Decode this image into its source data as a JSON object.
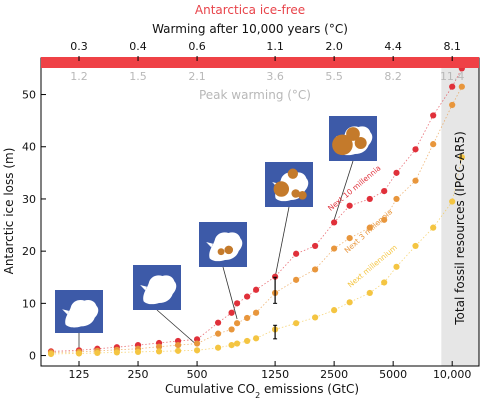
{
  "chart_data": {
    "type": "scatter",
    "title": "Antarctica ice-free",
    "top_axis_label": "Warming after 10,000 years (°C)",
    "top_ticks": [
      "0.3",
      "0.4",
      "0.6",
      "1.1",
      "2.0",
      "4.4",
      "8.1"
    ],
    "peak_ticks": [
      "1.2",
      "1.5",
      "2.1",
      "3.6",
      "5.5",
      "8.2",
      "11.4"
    ],
    "peak_axis_label": "Peak warming (°C)",
    "xlabel_prefix": "Cumulative CO",
    "xlabel_sub": "2",
    "xlabel_suffix": " emissions (GtC)",
    "ylabel": "Antarctic ice loss (m)",
    "x_scale": "log",
    "xlim": [
      80,
      13700
    ],
    "ylim": [
      -2,
      57
    ],
    "x_ticks": [
      125,
      250,
      500,
      1250,
      2500,
      5000,
      10000
    ],
    "x_tick_labels": [
      "125",
      "250",
      "500",
      "1250",
      "2500",
      "5000",
      "10,000"
    ],
    "y_ticks": [
      0,
      10,
      20,
      30,
      40,
      50
    ],
    "ice_free_line": 57,
    "fossil_region": {
      "x_start": 8800,
      "label": "Total fossil resources (IPCC-AR5)"
    },
    "series": [
      {
        "name": "Next 10 millennia",
        "color": "#e0303a",
        "x": [
          90,
          125,
          155,
          195,
          250,
          320,
          400,
          500,
          640,
          750,
          800,
          900,
          1000,
          1250,
          1600,
          2000,
          2500,
          3000,
          3800,
          4500,
          5200,
          6500,
          8000,
          10000,
          11200
        ],
        "y": [
          0.8,
          1.0,
          1.3,
          1.6,
          2.0,
          2.4,
          2.8,
          3.1,
          6.3,
          8.2,
          10.0,
          11.3,
          12.6,
          15.1,
          19.5,
          21.0,
          25.5,
          28.7,
          30.0,
          31.5,
          35.0,
          39.5,
          46.0,
          51.5,
          55.0
        ]
      },
      {
        "name": "Next 3 millennia",
        "color": "#e8963c",
        "x": [
          90,
          125,
          155,
          195,
          250,
          320,
          400,
          500,
          640,
          750,
          800,
          900,
          1000,
          1250,
          1600,
          2000,
          2500,
          3000,
          3800,
          4500,
          5200,
          6500,
          8000,
          10000,
          11200
        ],
        "y": [
          0.6,
          0.7,
          0.9,
          1.1,
          1.3,
          1.7,
          2.0,
          2.3,
          4.2,
          5.0,
          6.2,
          7.2,
          8.2,
          12.0,
          14.5,
          16.5,
          20.5,
          22.5,
          24.5,
          26.0,
          30.0,
          33.5,
          40.5,
          48.0,
          51.5
        ]
      },
      {
        "name": "Next millennium",
        "color": "#f4c542",
        "x": [
          90,
          125,
          155,
          195,
          250,
          320,
          400,
          500,
          640,
          750,
          800,
          900,
          1000,
          1250,
          1600,
          2000,
          2500,
          3000,
          3800,
          4500,
          5200,
          6500,
          8000,
          10000,
          11200
        ],
        "y": [
          0.3,
          0.4,
          0.5,
          0.6,
          0.7,
          0.8,
          0.9,
          1.0,
          1.5,
          2.0,
          2.3,
          2.8,
          3.3,
          5.0,
          6.2,
          7.3,
          8.7,
          10.2,
          12.0,
          14.0,
          17.0,
          21.0,
          24.5,
          29.5,
          38.0
        ]
      }
    ],
    "error_bars": [
      {
        "x": 1250,
        "y": 12.5,
        "low": 10.0,
        "high": 15.0
      },
      {
        "x": 1250,
        "y": 4.5,
        "low": 3.2,
        "high": 5.8
      }
    ]
  },
  "colors": {
    "ice_free_band": "#ef4146",
    "title": "#e8434a",
    "peak": "#b8b8b8",
    "fossil_shade": "#e6e6e6",
    "map_bg": "#3d5aa8",
    "ice": "#ffffff",
    "lost_ice": "#c47a2b"
  },
  "maps": [
    {
      "level": 0,
      "lost": []
    },
    {
      "level": 1,
      "lost": []
    },
    {
      "level": 2,
      "lost": [
        [
          62,
          62,
          5
        ],
        [
          46,
          66,
          4
        ]
      ]
    },
    {
      "level": 3,
      "lost": [
        [
          34,
          60,
          9
        ],
        [
          58,
          26,
          6
        ],
        [
          64,
          70,
          5
        ],
        [
          78,
          74,
          5
        ]
      ]
    },
    {
      "level": 4,
      "lost": [
        [
          28,
          64,
          12
        ],
        [
          50,
          40,
          8
        ],
        [
          66,
          60,
          7
        ]
      ]
    }
  ]
}
